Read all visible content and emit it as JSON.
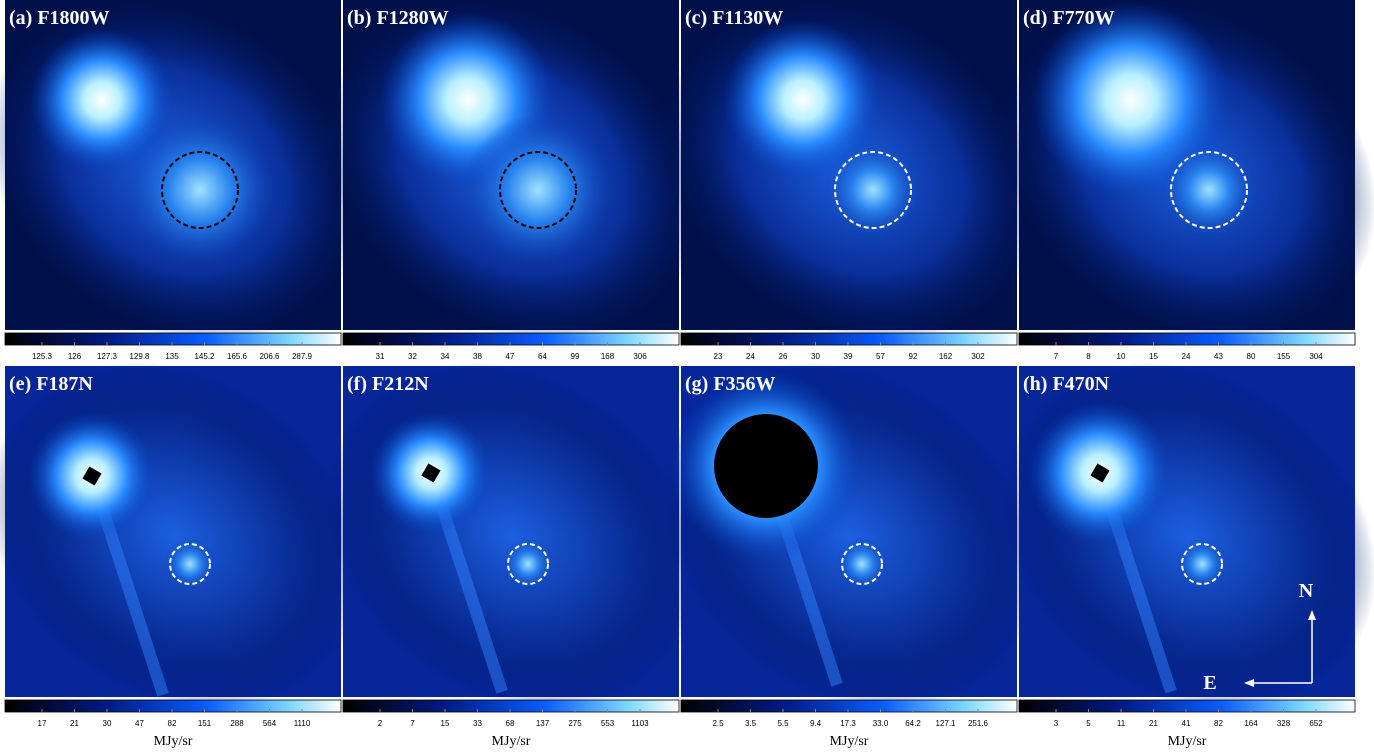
{
  "panels": [
    {
      "label": "(a) F1800W",
      "colorbar_ticks": [
        "125.3",
        "126",
        "127.3",
        "129.8",
        "135",
        "145.2",
        "165.6",
        "206.6",
        "287.9"
      ]
    },
    {
      "label": "(b) F1280W",
      "colorbar_ticks": [
        "31",
        "32",
        "34",
        "38",
        "47",
        "64",
        "99",
        "168",
        "306"
      ]
    },
    {
      "label": "(c) F1130W",
      "colorbar_ticks": [
        "23",
        "24",
        "26",
        "30",
        "39",
        "57",
        "92",
        "162",
        "302"
      ]
    },
    {
      "label": "(d) F770W",
      "colorbar_ticks": [
        "7",
        "8",
        "10",
        "15",
        "24",
        "43",
        "80",
        "155",
        "304"
      ]
    },
    {
      "label": "(e) F187N",
      "colorbar_ticks": [
        "17",
        "21",
        "30",
        "47",
        "82",
        "151",
        "288",
        "564",
        "1110"
      ]
    },
    {
      "label": "(f) F212N",
      "colorbar_ticks": [
        "2",
        "7",
        "15",
        "33",
        "68",
        "137",
        "275",
        "553",
        "1103"
      ]
    },
    {
      "label": "(g) F356W",
      "colorbar_ticks": [
        "2.5",
        "3.5",
        "5.5",
        "9.4",
        "17.3",
        "33.0",
        "64.2",
        "127.1",
        "251.6"
      ]
    },
    {
      "label": "(h) F470N",
      "colorbar_ticks": [
        "3",
        "5",
        "11",
        "21",
        "41",
        "82",
        "164",
        "328",
        "652"
      ]
    }
  ],
  "unit_label": "MJy/sr",
  "compass": {
    "north": "N",
    "east": "E"
  }
}
